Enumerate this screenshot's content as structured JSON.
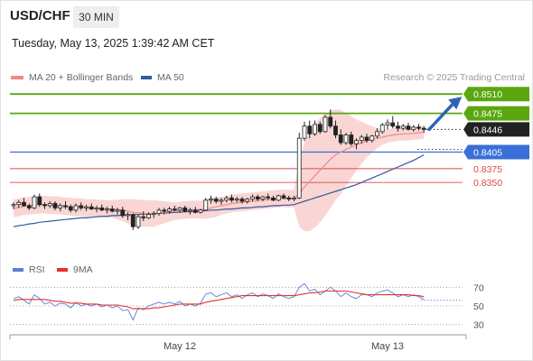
{
  "header": {
    "symbol": "USD/CHF",
    "timeframe": "30 MIN",
    "timestamp": "Tuesday, May 13, 2025 1:39:42 AM CET",
    "credit": "Research © 2025 Trading Central"
  },
  "legend": {
    "ma20_label": "MA 20 + Bollinger Bands",
    "ma20_color": "#f08a80",
    "ma50_label": "MA 50",
    "ma50_color": "#2f5c9e"
  },
  "rsi_legend": {
    "rsi_label": "RSI",
    "rsi_color": "#5b7fd6",
    "ma_label": "9MA",
    "ma_color": "#e53030"
  },
  "colors": {
    "up_candle": "#ffffff",
    "down_candle": "#222222",
    "bb_fill": "#f7c8c6",
    "green": "#5aa70f",
    "blue": "#3a6fd8",
    "red": "#e04848",
    "black": "#222222",
    "arrow": "#2f64b4"
  },
  "chart_data": [
    {
      "type": "candlestick",
      "title": "USD/CHF",
      "ylim": [
        0.8205,
        0.8525
      ],
      "x_labels": [
        {
          "index": 32,
          "label": "May 12"
        },
        {
          "index": 72,
          "label": "May 13"
        }
      ],
      "levels": [
        {
          "value": 0.851,
          "label": "0.8510",
          "kind": "resistance",
          "color": "#5aa70f",
          "style": "solid",
          "tag": "box"
        },
        {
          "value": 0.8475,
          "label": "0.8475",
          "kind": "resistance",
          "color": "#5aa70f",
          "style": "solid",
          "tag": "box"
        },
        {
          "value": 0.8446,
          "label": "0.8446",
          "kind": "last",
          "color": "#222222",
          "style": "dotted",
          "tag": "box"
        },
        {
          "value": 0.8405,
          "label": "0.8405",
          "kind": "pivot",
          "color": "#3a6fd8",
          "style": "solid",
          "tag": "box"
        },
        {
          "value": 0.8375,
          "label": "0.8375",
          "kind": "support",
          "color": "#e04848",
          "style": "thin",
          "tag": "text"
        },
        {
          "value": 0.835,
          "label": "0.8350",
          "kind": "support",
          "color": "#e04848",
          "style": "thin",
          "tag": "text"
        }
      ],
      "arrow": {
        "from_index": 80,
        "from_value": 0.8446,
        "to_index": 87,
        "to_value": 0.851
      },
      "candles": [
        [
          0.8308,
          0.8314,
          0.8302,
          0.831
        ],
        [
          0.831,
          0.8318,
          0.8304,
          0.8314
        ],
        [
          0.8314,
          0.8322,
          0.8306,
          0.8308
        ],
        [
          0.8308,
          0.8312,
          0.83,
          0.8304
        ],
        [
          0.8304,
          0.8328,
          0.8302,
          0.8324
        ],
        [
          0.8324,
          0.833,
          0.8306,
          0.831
        ],
        [
          0.831,
          0.8314,
          0.8302,
          0.8308
        ],
        [
          0.8308,
          0.8316,
          0.8304,
          0.8312
        ],
        [
          0.8312,
          0.8316,
          0.83,
          0.8304
        ],
        [
          0.8304,
          0.8312,
          0.8298,
          0.8308
        ],
        [
          0.8308,
          0.8316,
          0.8302,
          0.8306
        ],
        [
          0.8306,
          0.831,
          0.8296,
          0.83
        ],
        [
          0.83,
          0.8312,
          0.8296,
          0.8308
        ],
        [
          0.8308,
          0.8314,
          0.83,
          0.8304
        ],
        [
          0.8304,
          0.831,
          0.8298,
          0.8306
        ],
        [
          0.8306,
          0.8312,
          0.83,
          0.8302
        ],
        [
          0.8302,
          0.8308,
          0.8296,
          0.8304
        ],
        [
          0.8304,
          0.831,
          0.8298,
          0.83
        ],
        [
          0.83,
          0.8306,
          0.8294,
          0.8302
        ],
        [
          0.8302,
          0.8308,
          0.8296,
          0.8298
        ],
        [
          0.8298,
          0.8304,
          0.8292,
          0.83
        ],
        [
          0.83,
          0.8306,
          0.8286,
          0.829
        ],
        [
          0.829,
          0.8296,
          0.8282,
          0.8292
        ],
        [
          0.8292,
          0.8294,
          0.8264,
          0.827
        ],
        [
          0.827,
          0.8292,
          0.8266,
          0.8288
        ],
        [
          0.8288,
          0.8298,
          0.828,
          0.8286
        ],
        [
          0.8286,
          0.8296,
          0.8284,
          0.8292
        ],
        [
          0.8292,
          0.8298,
          0.8286,
          0.8294
        ],
        [
          0.8294,
          0.8304,
          0.829,
          0.83
        ],
        [
          0.83,
          0.8304,
          0.8292,
          0.8298
        ],
        [
          0.8298,
          0.8306,
          0.8294,
          0.8302
        ],
        [
          0.8302,
          0.8308,
          0.8298,
          0.83
        ],
        [
          0.83,
          0.8306,
          0.8296,
          0.8304
        ],
        [
          0.8304,
          0.8308,
          0.8296,
          0.8298
        ],
        [
          0.8298,
          0.8304,
          0.8292,
          0.83
        ],
        [
          0.83,
          0.8306,
          0.8294,
          0.8296
        ],
        [
          0.8296,
          0.8302,
          0.8294,
          0.83
        ],
        [
          0.83,
          0.8322,
          0.8298,
          0.8318
        ],
        [
          0.8318,
          0.8326,
          0.8312,
          0.832
        ],
        [
          0.832,
          0.8324,
          0.8312,
          0.8316
        ],
        [
          0.8316,
          0.8322,
          0.831,
          0.8318
        ],
        [
          0.8318,
          0.8326,
          0.8314,
          0.8322
        ],
        [
          0.8322,
          0.8328,
          0.8314,
          0.8318
        ],
        [
          0.8318,
          0.8324,
          0.8314,
          0.832
        ],
        [
          0.832,
          0.8324,
          0.8312,
          0.8316
        ],
        [
          0.8316,
          0.8322,
          0.8312,
          0.832
        ],
        [
          0.832,
          0.8328,
          0.8316,
          0.8324
        ],
        [
          0.8324,
          0.8328,
          0.8316,
          0.832
        ],
        [
          0.832,
          0.8326,
          0.8316,
          0.8324
        ],
        [
          0.8324,
          0.833,
          0.8318,
          0.8322
        ],
        [
          0.8322,
          0.8326,
          0.8316,
          0.8318
        ],
        [
          0.8318,
          0.8328,
          0.8316,
          0.8326
        ],
        [
          0.8326,
          0.833,
          0.832,
          0.8322
        ],
        [
          0.8322,
          0.8326,
          0.8316,
          0.832
        ],
        [
          0.832,
          0.8326,
          0.8316,
          0.8322
        ],
        [
          0.8322,
          0.844,
          0.832,
          0.843
        ],
        [
          0.843,
          0.846,
          0.8425,
          0.8452
        ],
        [
          0.8452,
          0.8462,
          0.843,
          0.8438
        ],
        [
          0.8438,
          0.8462,
          0.8434,
          0.8455
        ],
        [
          0.8455,
          0.846,
          0.8438,
          0.8442
        ],
        [
          0.8442,
          0.8472,
          0.844,
          0.8468
        ],
        [
          0.8468,
          0.8482,
          0.8448,
          0.8452
        ],
        [
          0.8452,
          0.8462,
          0.843,
          0.8436
        ],
        [
          0.8436,
          0.8446,
          0.8418,
          0.8422
        ],
        [
          0.8422,
          0.844,
          0.8418,
          0.8436
        ],
        [
          0.8436,
          0.8442,
          0.8416,
          0.842
        ],
        [
          0.842,
          0.843,
          0.841,
          0.8426
        ],
        [
          0.8426,
          0.8436,
          0.842,
          0.8432
        ],
        [
          0.8432,
          0.8438,
          0.8422,
          0.8426
        ],
        [
          0.8426,
          0.8436,
          0.8422,
          0.8434
        ],
        [
          0.8434,
          0.8448,
          0.843,
          0.8442
        ],
        [
          0.8442,
          0.8458,
          0.8438,
          0.8454
        ],
        [
          0.8454,
          0.8464,
          0.8446,
          0.8458
        ],
        [
          0.8458,
          0.847,
          0.8448,
          0.8452
        ],
        [
          0.8452,
          0.846,
          0.8442,
          0.8448
        ],
        [
          0.8448,
          0.8456,
          0.8444,
          0.8452
        ],
        [
          0.8452,
          0.8458,
          0.8444,
          0.8446
        ],
        [
          0.8446,
          0.8454,
          0.8442,
          0.845
        ],
        [
          0.845,
          0.8456,
          0.8444,
          0.8448
        ],
        [
          0.8448,
          0.8452,
          0.844,
          0.8446
        ]
      ],
      "ma20": [
        0.8303,
        0.8305,
        0.8307,
        0.8308,
        0.8309,
        0.831,
        0.831,
        0.8309,
        0.8309,
        0.8308,
        0.8307,
        0.8306,
        0.8305,
        0.8305,
        0.8304,
        0.8304,
        0.8303,
        0.8303,
        0.8302,
        0.8302,
        0.8301,
        0.83,
        0.8298,
        0.8296,
        0.8295,
        0.8294,
        0.8294,
        0.8294,
        0.8295,
        0.8296,
        0.8297,
        0.8298,
        0.8299,
        0.83,
        0.8301,
        0.8301,
        0.8301,
        0.8302,
        0.8304,
        0.8306,
        0.8308,
        0.831,
        0.8312,
        0.8313,
        0.8314,
        0.8315,
        0.8316,
        0.8317,
        0.8318,
        0.8319,
        0.832,
        0.8321,
        0.8321,
        0.8321,
        0.8321,
        0.833,
        0.8342,
        0.8352,
        0.8362,
        0.8372,
        0.8382,
        0.8392,
        0.84,
        0.8405,
        0.841,
        0.8414,
        0.8418,
        0.8422,
        0.8425,
        0.8428,
        0.843,
        0.8432,
        0.8434,
        0.8436,
        0.8437,
        0.8438,
        0.8438,
        0.8439,
        0.844,
        0.8441
      ],
      "ma50": [
        0.827,
        0.8272,
        0.8273,
        0.8275,
        0.8276,
        0.8278,
        0.8279,
        0.828,
        0.8281,
        0.8282,
        0.8283,
        0.8284,
        0.8285,
        0.8286,
        0.8286,
        0.8287,
        0.8288,
        0.8289,
        0.8289,
        0.829,
        0.829,
        0.8291,
        0.8291,
        0.8292,
        0.8292,
        0.8293,
        0.8293,
        0.8294,
        0.8294,
        0.8295,
        0.8295,
        0.8296,
        0.8296,
        0.8297,
        0.8297,
        0.8298,
        0.8298,
        0.8299,
        0.83,
        0.83,
        0.8301,
        0.8302,
        0.8302,
        0.8303,
        0.8304,
        0.8304,
        0.8305,
        0.8306,
        0.8306,
        0.8307,
        0.8308,
        0.8308,
        0.8309,
        0.8309,
        0.831,
        0.8313,
        0.8316,
        0.8319,
        0.8322,
        0.8325,
        0.8328,
        0.8331,
        0.8334,
        0.8337,
        0.834,
        0.8343,
        0.8346,
        0.835,
        0.8354,
        0.8358,
        0.8362,
        0.8366,
        0.837,
        0.8374,
        0.8378,
        0.8382,
        0.8386,
        0.839,
        0.8395,
        0.84
      ],
      "bb_width": [
        0.0016,
        0.0016,
        0.0016,
        0.0016,
        0.0016,
        0.0016,
        0.0016,
        0.0016,
        0.0016,
        0.0016,
        0.0016,
        0.0016,
        0.0016,
        0.0016,
        0.0016,
        0.0016,
        0.0016,
        0.0016,
        0.0016,
        0.0016,
        0.0018,
        0.002,
        0.0022,
        0.0024,
        0.0024,
        0.0024,
        0.0024,
        0.0024,
        0.0022,
        0.002,
        0.0018,
        0.0016,
        0.0016,
        0.0016,
        0.0016,
        0.0016,
        0.0016,
        0.0018,
        0.0018,
        0.0018,
        0.0016,
        0.0016,
        0.0016,
        0.0016,
        0.0016,
        0.0016,
        0.0016,
        0.0016,
        0.0016,
        0.0016,
        0.0016,
        0.0016,
        0.0016,
        0.0016,
        0.0016,
        0.006,
        0.008,
        0.009,
        0.0094,
        0.0094,
        0.0092,
        0.0088,
        0.0082,
        0.0076,
        0.0066,
        0.0056,
        0.0046,
        0.0038,
        0.003,
        0.0024,
        0.0018,
        0.0014,
        0.0012,
        0.0012,
        0.0012,
        0.0012,
        0.0012,
        0.0012,
        0.0012,
        0.0012
      ]
    },
    {
      "type": "line",
      "title": "RSI",
      "ylim": [
        20,
        80
      ],
      "ticks": [
        {
          "value": 70,
          "label": "70"
        },
        {
          "value": 50,
          "label": "50"
        },
        {
          "value": 30,
          "label": "30"
        }
      ],
      "series": [
        {
          "name": "RSI",
          "values": [
            58,
            60,
            56,
            52,
            62,
            58,
            52,
            54,
            50,
            53,
            52,
            48,
            54,
            50,
            52,
            50,
            52,
            49,
            51,
            48,
            50,
            45,
            46,
            35,
            48,
            46,
            50,
            52,
            54,
            52,
            54,
            52,
            55,
            50,
            52,
            50,
            53,
            63,
            64,
            60,
            62,
            64,
            60,
            62,
            58,
            62,
            64,
            60,
            63,
            61,
            58,
            63,
            60,
            58,
            60,
            70,
            74,
            66,
            68,
            62,
            66,
            70,
            66,
            60,
            64,
            60,
            58,
            62,
            62,
            60,
            64,
            66,
            67,
            64,
            60,
            62,
            60,
            62,
            60,
            57
          ]
        },
        {
          "name": "9MA",
          "values": [
            56,
            57,
            57,
            57,
            57,
            57,
            57,
            56,
            55,
            55,
            54,
            53,
            53,
            53,
            52,
            52,
            52,
            51,
            51,
            51,
            51,
            50,
            49,
            47,
            47,
            47,
            47,
            48,
            48,
            49,
            50,
            51,
            52,
            52,
            52,
            52,
            52,
            54,
            55,
            56,
            57,
            58,
            59,
            60,
            61,
            61,
            61,
            61,
            61,
            61,
            61,
            61,
            61,
            61,
            61,
            62,
            63,
            64,
            64,
            65,
            66,
            66,
            66,
            66,
            66,
            65,
            64,
            63,
            62,
            62,
            62,
            62,
            62,
            62,
            62,
            62,
            62,
            61,
            61,
            60
          ]
        }
      ]
    }
  ]
}
